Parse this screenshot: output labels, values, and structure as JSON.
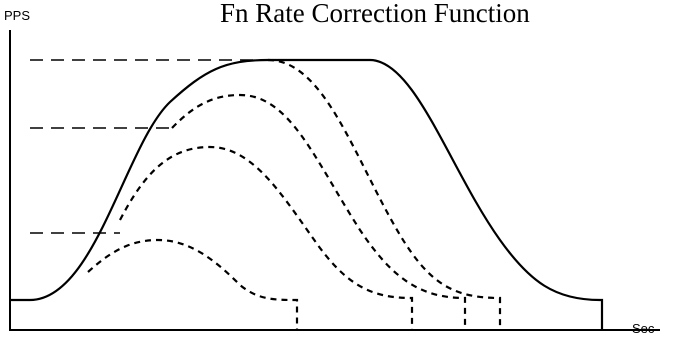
{
  "title": "Fn Rate Correction Function",
  "y_axis_label": "PPS",
  "x_axis_label": "Sec",
  "colors": {
    "ink": "#000000",
    "background": "#ffffff"
  }
}
